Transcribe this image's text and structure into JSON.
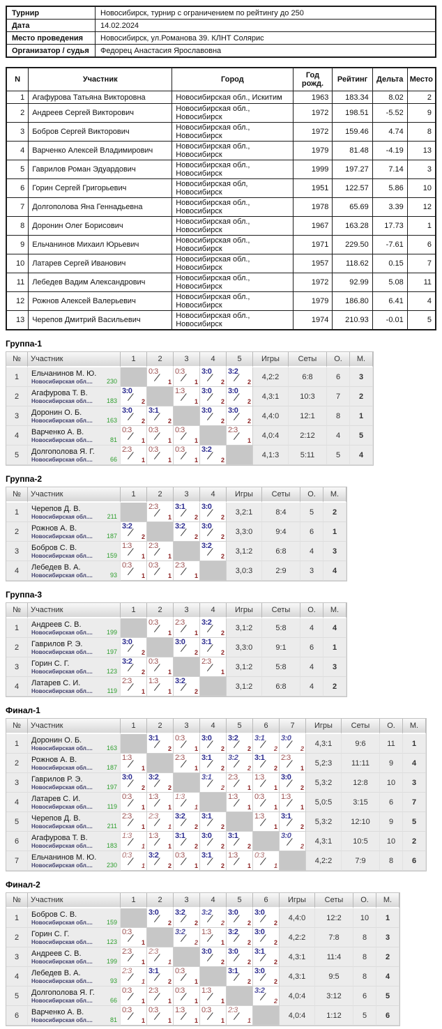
{
  "colors": {
    "win_score": "#2b2b8f",
    "loss_score": "#9c5050",
    "point_digit": "#8c2222",
    "rating_green": "#2e9e2e",
    "place_navy": "#2b2b8f",
    "club_text": "#3e3e6b",
    "self_cell_gray": "#c7c7c7"
  },
  "info": {
    "rows": [
      {
        "label": "Турнир",
        "value": "Новосибирск, турнир с ограничением по рейтингу до 250"
      },
      {
        "label": "Дата",
        "value": "14.02.2024"
      },
      {
        "label": "Место проведения",
        "value": "Новосибирск, ул.Романова 39. КЛНТ Солярис"
      },
      {
        "label": "Организатор / судья",
        "value": "Федорец Анастасия Ярославовна"
      }
    ]
  },
  "participants": {
    "headers": [
      "N",
      "Участник",
      "Город",
      "Год рожд.",
      "Рейтинг",
      "Дельта",
      "Место"
    ],
    "rows": [
      [
        "1",
        "Агафурова Татьяна Викторовна",
        "Новосибирская обл., Искитим",
        "1963",
        "183.34",
        "8.02",
        "2"
      ],
      [
        "2",
        "Андреев Сергей Викторович",
        "Новосибирская обл., Новосибирск",
        "1972",
        "198.51",
        "-5.52",
        "9"
      ],
      [
        "3",
        "Бобров Сергей Викторович",
        "Новосибирская обл., Новосибирск",
        "1972",
        "159.46",
        "4.74",
        "8"
      ],
      [
        "4",
        "Варченко Алексей Владимирович",
        "Новосибирская обл., Новосибирск",
        "1979",
        "81.48",
        "-4.19",
        "13"
      ],
      [
        "5",
        "Гаврилов Роман Эдуардович",
        "Новосибирская обл., Новосибирск",
        "1999",
        "197.27",
        "7.14",
        "3"
      ],
      [
        "6",
        "Горин Сергей Григорьевич",
        "Новосибирская обл, Новосибирск",
        "1951",
        "122.57",
        "5.86",
        "10"
      ],
      [
        "7",
        "Долгополова Яна Геннадьевна",
        "Новосибирская обл., Новосибирск",
        "1978",
        "65.69",
        "3.39",
        "12"
      ],
      [
        "8",
        "Доронин Олег Борисович",
        "Новосибирская обл., Новосибирск",
        "1967",
        "163.28",
        "17.73",
        "1"
      ],
      [
        "9",
        "Ельчанинов Михаил Юрьевич",
        "Новосибирская обл., Новосибирск",
        "1971",
        "229.50",
        "-7.61",
        "6"
      ],
      [
        "10",
        "Латарев Сергей Иванович",
        "Новосибирская обл., Новосибирск",
        "1957",
        "118.62",
        "0.15",
        "7"
      ],
      [
        "11",
        "Лебедев Вадим Александрович",
        "Новосибирская обл., Новосибирск",
        "1972",
        "92.99",
        "5.08",
        "11"
      ],
      [
        "12",
        "Рожнов Алексей Валерьевич",
        "Новосибирская обл., Новосибирск",
        "1979",
        "186.80",
        "6.41",
        "4"
      ],
      [
        "13",
        "Черепов Дмитрий Васильевич",
        "Новосибирская обл., Новосибирск",
        "1974",
        "210.93",
        "-0.01",
        "5"
      ]
    ]
  },
  "group_table_headers": {
    "num": "№",
    "participant": "Участник",
    "games": "Игры",
    "sets": "Сеты",
    "points": "О.",
    "place": "М."
  },
  "groups": [
    {
      "title": "Группа-1",
      "opponent_labels": [
        "1",
        "2",
        "3",
        "4",
        "5"
      ],
      "rows": [
        {
          "num": "1",
          "name": "Ельчанинов М. Ю.",
          "club": "Новосибирская обл....",
          "rating": "230",
          "cells": [
            "",
            "0:3/1",
            "0:3/1",
            "3:0/2",
            "3:2/2"
          ],
          "games": "4,2:2",
          "sets": "6:8",
          "points": "6",
          "place": "3"
        },
        {
          "num": "2",
          "name": "Агафурова Т. В.",
          "club": "Новосибирская обл....",
          "rating": "183",
          "cells": [
            "3:0/2",
            "",
            "1:3/1",
            "3:0/2",
            "3:0/2"
          ],
          "games": "4,3:1",
          "sets": "10:3",
          "points": "7",
          "place": "2"
        },
        {
          "num": "3",
          "name": "Доронин О. Б.",
          "club": "Новосибирская обл....",
          "rating": "163",
          "cells": [
            "3:0/2",
            "3:1/2",
            "",
            "3:0/2",
            "3:0/2"
          ],
          "games": "4,4:0",
          "sets": "12:1",
          "points": "8",
          "place": "1"
        },
        {
          "num": "4",
          "name": "Варченко А. В.",
          "club": "Новосибирская обл....",
          "rating": "81",
          "cells": [
            "0:3/1",
            "0:3/1",
            "0:3/1",
            "",
            "2:3/1"
          ],
          "games": "4,0:4",
          "sets": "2:12",
          "points": "4",
          "place": "5"
        },
        {
          "num": "5",
          "name": "Долгополова Я. Г.",
          "club": "Новосибирская обл....",
          "rating": "66",
          "cells": [
            "2:3/1",
            "0:3/1",
            "0:3/1",
            "3:2/2",
            ""
          ],
          "games": "4,1:3",
          "sets": "5:11",
          "points": "5",
          "place": "4"
        }
      ]
    },
    {
      "title": "Группа-2",
      "opponent_labels": [
        "1",
        "2",
        "3",
        "4"
      ],
      "rows": [
        {
          "num": "1",
          "name": "Черепов Д. В.",
          "club": "Новосибирская обл....",
          "rating": "211",
          "cells": [
            "",
            "2:3/1",
            "3:1/2",
            "3:0/2"
          ],
          "games": "3,2:1",
          "sets": "8:4",
          "points": "5",
          "place": "2"
        },
        {
          "num": "2",
          "name": "Рожнов А. В.",
          "club": "Новосибирская обл....",
          "rating": "187",
          "cells": [
            "3:2/2",
            "",
            "3:2/2",
            "3:0/2"
          ],
          "games": "3,3:0",
          "sets": "9:4",
          "points": "6",
          "place": "1"
        },
        {
          "num": "3",
          "name": "Бобров С. В.",
          "club": "Новосибирская обл....",
          "rating": "159",
          "cells": [
            "1:3/1",
            "2:3/1",
            "",
            "3:2/2"
          ],
          "games": "3,1:2",
          "sets": "6:8",
          "points": "4",
          "place": "3"
        },
        {
          "num": "4",
          "name": "Лебедев В. А.",
          "club": "Новосибирская обл....",
          "rating": "93",
          "cells": [
            "0:3/1",
            "0:3/1",
            "2:3/1",
            ""
          ],
          "games": "3,0:3",
          "sets": "2:9",
          "points": "3",
          "place": "4"
        }
      ]
    },
    {
      "title": "Группа-3",
      "opponent_labels": [
        "1",
        "2",
        "3",
        "4"
      ],
      "rows": [
        {
          "num": "1",
          "name": "Андреев С. В.",
          "club": "Новосибирская обл....",
          "rating": "199",
          "cells": [
            "",
            "0:3/1",
            "2:3/1",
            "3:2/2"
          ],
          "games": "3,1:2",
          "sets": "5:8",
          "points": "4",
          "place": "4"
        },
        {
          "num": "2",
          "name": "Гаврилов Р. Э.",
          "club": "Новосибирская обл....",
          "rating": "197",
          "cells": [
            "3:0/2",
            "",
            "3:0/2",
            "3:1/2"
          ],
          "games": "3,3:0",
          "sets": "9:1",
          "points": "6",
          "place": "1"
        },
        {
          "num": "3",
          "name": "Горин С. Г.",
          "club": "Новосибирская обл....",
          "rating": "123",
          "cells": [
            "3:2/2",
            "0:3/1",
            "",
            "2:3/1"
          ],
          "games": "3,1:2",
          "sets": "5:8",
          "points": "4",
          "place": "3"
        },
        {
          "num": "4",
          "name": "Латарев С. И.",
          "club": "Новосибирская обл....",
          "rating": "119",
          "cells": [
            "2:3/1",
            "1:3/1",
            "3:2/2",
            ""
          ],
          "games": "3,1:2",
          "sets": "6:8",
          "points": "4",
          "place": "2"
        }
      ]
    },
    {
      "title": "Финал-1",
      "opponent_labels": [
        "1",
        "2",
        "3",
        "4",
        "5",
        "6",
        "7"
      ],
      "rows": [
        {
          "num": "1",
          "name": "Доронин О. Б.",
          "club": "Новосибирская обл....",
          "rating": "163",
          "cells": [
            "",
            "3:1/2",
            "0:3/1",
            "3:0/2",
            "3:2/2",
            "3:1/2i",
            "3:0/2i"
          ],
          "games": "4,3:1",
          "sets": "9:6",
          "points": "11",
          "place": "1"
        },
        {
          "num": "2",
          "name": "Рожнов А. В.",
          "club": "Новосибирская обл....",
          "rating": "187",
          "cells": [
            "1:3/1",
            "",
            "2:3/1",
            "3:1/2",
            "3:2/2i",
            "3:1/2",
            "2:3/1"
          ],
          "games": "5,2:3",
          "sets": "11:11",
          "points": "9",
          "place": "4"
        },
        {
          "num": "3",
          "name": "Гаврилов Р. Э.",
          "club": "Новосибирская обл....",
          "rating": "197",
          "cells": [
            "3:0/2",
            "3:2/2",
            "",
            "3:1/2i",
            "2:3/1",
            "1:3/1",
            "3:0/2"
          ],
          "games": "5,3:2",
          "sets": "12:8",
          "points": "10",
          "place": "3"
        },
        {
          "num": "4",
          "name": "Латарев С. И.",
          "club": "Новосибирская обл....",
          "rating": "119",
          "cells": [
            "0:3/1",
            "1:3/1",
            "1:3/1i",
            "",
            "1:3/1",
            "0:3/1",
            "1:3/1"
          ],
          "games": "5,0:5",
          "sets": "3:15",
          "points": "6",
          "place": "7"
        },
        {
          "num": "5",
          "name": "Черепов Д. В.",
          "club": "Новосибирская обл....",
          "rating": "211",
          "cells": [
            "2:3/1",
            "2:3/1i",
            "3:2/2",
            "3:1/2",
            "",
            "1:3/1",
            "3:1/2"
          ],
          "games": "5,3:2",
          "sets": "12:10",
          "points": "9",
          "place": "5"
        },
        {
          "num": "6",
          "name": "Агафурова Т. В.",
          "club": "Новосибирская обл....",
          "rating": "183",
          "cells": [
            "1:3/1i",
            "1:3/1",
            "3:1/2",
            "3:0/2",
            "3:1/2",
            "",
            "3:0/2i"
          ],
          "games": "4,3:1",
          "sets": "10:5",
          "points": "10",
          "place": "2"
        },
        {
          "num": "7",
          "name": "Ельчанинов М. Ю.",
          "club": "Новосибирская обл....",
          "rating": "230",
          "cells": [
            "0:3/1i",
            "3:2/2",
            "0:3/1",
            "3:1/2",
            "1:3/1",
            "0:3/1i",
            ""
          ],
          "games": "4,2:2",
          "sets": "7:9",
          "points": "8",
          "place": "6"
        }
      ]
    },
    {
      "title": "Финал-2",
      "opponent_labels": [
        "1",
        "2",
        "3",
        "4",
        "5",
        "6"
      ],
      "rows": [
        {
          "num": "1",
          "name": "Бобров С. В.",
          "club": "Новосибирская обл....",
          "rating": "159",
          "cells": [
            "",
            "3:0/2",
            "3:2/2",
            "3:2/2i",
            "3:0/2",
            "3:0/2"
          ],
          "games": "4,4:0",
          "sets": "12:2",
          "points": "10",
          "place": "1"
        },
        {
          "num": "2",
          "name": "Горин С. Г.",
          "club": "Новосибирская обл....",
          "rating": "123",
          "cells": [
            "0:3/1",
            "",
            "3:2/2i",
            "1:3/1",
            "3:2/2",
            "3:0/2"
          ],
          "games": "4,2:2",
          "sets": "7:8",
          "points": "8",
          "place": "3"
        },
        {
          "num": "3",
          "name": "Андреев С. В.",
          "club": "Новосибирская обл....",
          "rating": "199",
          "cells": [
            "2:3/1",
            "2:3/1i",
            "",
            "3:0/2",
            "3:0/2",
            "3:1/2"
          ],
          "games": "4,3:1",
          "sets": "11:4",
          "points": "8",
          "place": "2"
        },
        {
          "num": "4",
          "name": "Лебедев В. А.",
          "club": "Новосибирская обл....",
          "rating": "93",
          "cells": [
            "2:3/1i",
            "3:1/2",
            "0:3/1",
            "",
            "3:1/2",
            "3:0/2"
          ],
          "games": "4,3:1",
          "sets": "9:5",
          "points": "8",
          "place": "4"
        },
        {
          "num": "5",
          "name": "Долгополова Я. Г.",
          "club": "Новосибирская обл....",
          "rating": "66",
          "cells": [
            "0:3/1",
            "2:3/1",
            "0:3/1",
            "1:3/1",
            "",
            "3:2/2i"
          ],
          "games": "4,0:4",
          "sets": "3:12",
          "points": "6",
          "place": "5"
        },
        {
          "num": "6",
          "name": "Варченко А. В.",
          "club": "Новосибирская обл....",
          "rating": "81",
          "cells": [
            "0:3/1",
            "0:3/1",
            "1:3/1",
            "0:3/1",
            "2:3/1i",
            ""
          ],
          "games": "4,0:4",
          "sets": "1:12",
          "points": "5",
          "place": "6"
        }
      ]
    }
  ]
}
